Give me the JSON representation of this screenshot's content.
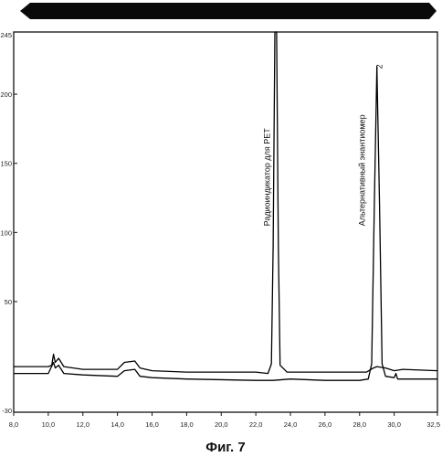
{
  "chart_data": {
    "type": "line",
    "title": "",
    "xlabel": "",
    "ylabel": "",
    "xlim": [
      8.0,
      32.5
    ],
    "ylim": [
      -30,
      245
    ],
    "x_ticks": [
      8.0,
      10.0,
      12.0,
      14.0,
      16.0,
      18.0,
      20.0,
      22.0,
      24.0,
      26.0,
      28.0,
      30.0,
      32.5
    ],
    "x_tick_labels": [
      "8,0",
      "10,0",
      "12,0",
      "14,0",
      "16,0",
      "18,0",
      "20,0",
      "22,0",
      "24,0",
      "26,0",
      "28,0",
      "30,0",
      "32,5"
    ],
    "y_ticks": [
      245,
      200,
      150,
      100,
      50,
      -30
    ],
    "y_tick_labels": [
      "245",
      "200",
      "150",
      "100",
      "50",
      "-30"
    ],
    "grid": false,
    "series": [
      {
        "color": "#000000",
        "points": [
          [
            8.0,
            3
          ],
          [
            10.0,
            3
          ],
          [
            10.2,
            4
          ],
          [
            10.3,
            12
          ],
          [
            10.4,
            6
          ],
          [
            10.6,
            9
          ],
          [
            10.9,
            3
          ],
          [
            12.0,
            1
          ],
          [
            14.0,
            1
          ],
          [
            14.4,
            6
          ],
          [
            15.0,
            7
          ],
          [
            15.3,
            2
          ],
          [
            16.0,
            0
          ],
          [
            18.0,
            -1
          ],
          [
            22.0,
            -1
          ],
          [
            22.7,
            -2
          ],
          [
            22.9,
            5
          ],
          [
            23.0,
            90
          ],
          [
            23.1,
            245
          ],
          [
            23.2,
            245
          ],
          [
            23.3,
            90
          ],
          [
            23.4,
            4
          ],
          [
            23.8,
            -1
          ],
          [
            26.0,
            -1
          ],
          [
            28.0,
            -1
          ],
          [
            28.4,
            -1
          ],
          [
            28.8,
            2
          ],
          [
            29.0,
            3
          ],
          [
            29.5,
            2
          ],
          [
            30.0,
            0
          ],
          [
            30.5,
            1
          ],
          [
            32.5,
            0
          ]
        ]
      },
      {
        "color": "#000000",
        "points": [
          [
            8.0,
            -2
          ],
          [
            10.0,
            -2
          ],
          [
            10.3,
            6
          ],
          [
            10.4,
            2
          ],
          [
            10.6,
            4
          ],
          [
            10.9,
            -2
          ],
          [
            12.0,
            -3
          ],
          [
            14.0,
            -4
          ],
          [
            14.4,
            0
          ],
          [
            15.0,
            1
          ],
          [
            15.3,
            -4
          ],
          [
            16.0,
            -5
          ],
          [
            18.0,
            -6
          ],
          [
            22.0,
            -7
          ],
          [
            23.0,
            -7
          ],
          [
            24.0,
            -6
          ],
          [
            26.0,
            -7
          ],
          [
            28.0,
            -7
          ],
          [
            28.5,
            -6
          ],
          [
            28.7,
            5
          ],
          [
            28.85,
            120
          ],
          [
            29.0,
            220
          ],
          [
            29.15,
            120
          ],
          [
            29.3,
            5
          ],
          [
            29.5,
            -4
          ],
          [
            30.0,
            -5
          ],
          [
            30.1,
            -2
          ],
          [
            30.2,
            -6
          ],
          [
            32.5,
            -6
          ]
        ]
      }
    ],
    "annotations": [
      {
        "text": "Радиоиндикатор для PET",
        "x": 22.8,
        "y": 140
      },
      {
        "text": "Альтернативный энантиомер",
        "x": 28.3,
        "y": 145
      },
      {
        "text": "2",
        "x": 29.3,
        "y": 220
      }
    ]
  },
  "header_bar": {
    "color": "#0a0a0a"
  },
  "caption": "Фиг. 7"
}
